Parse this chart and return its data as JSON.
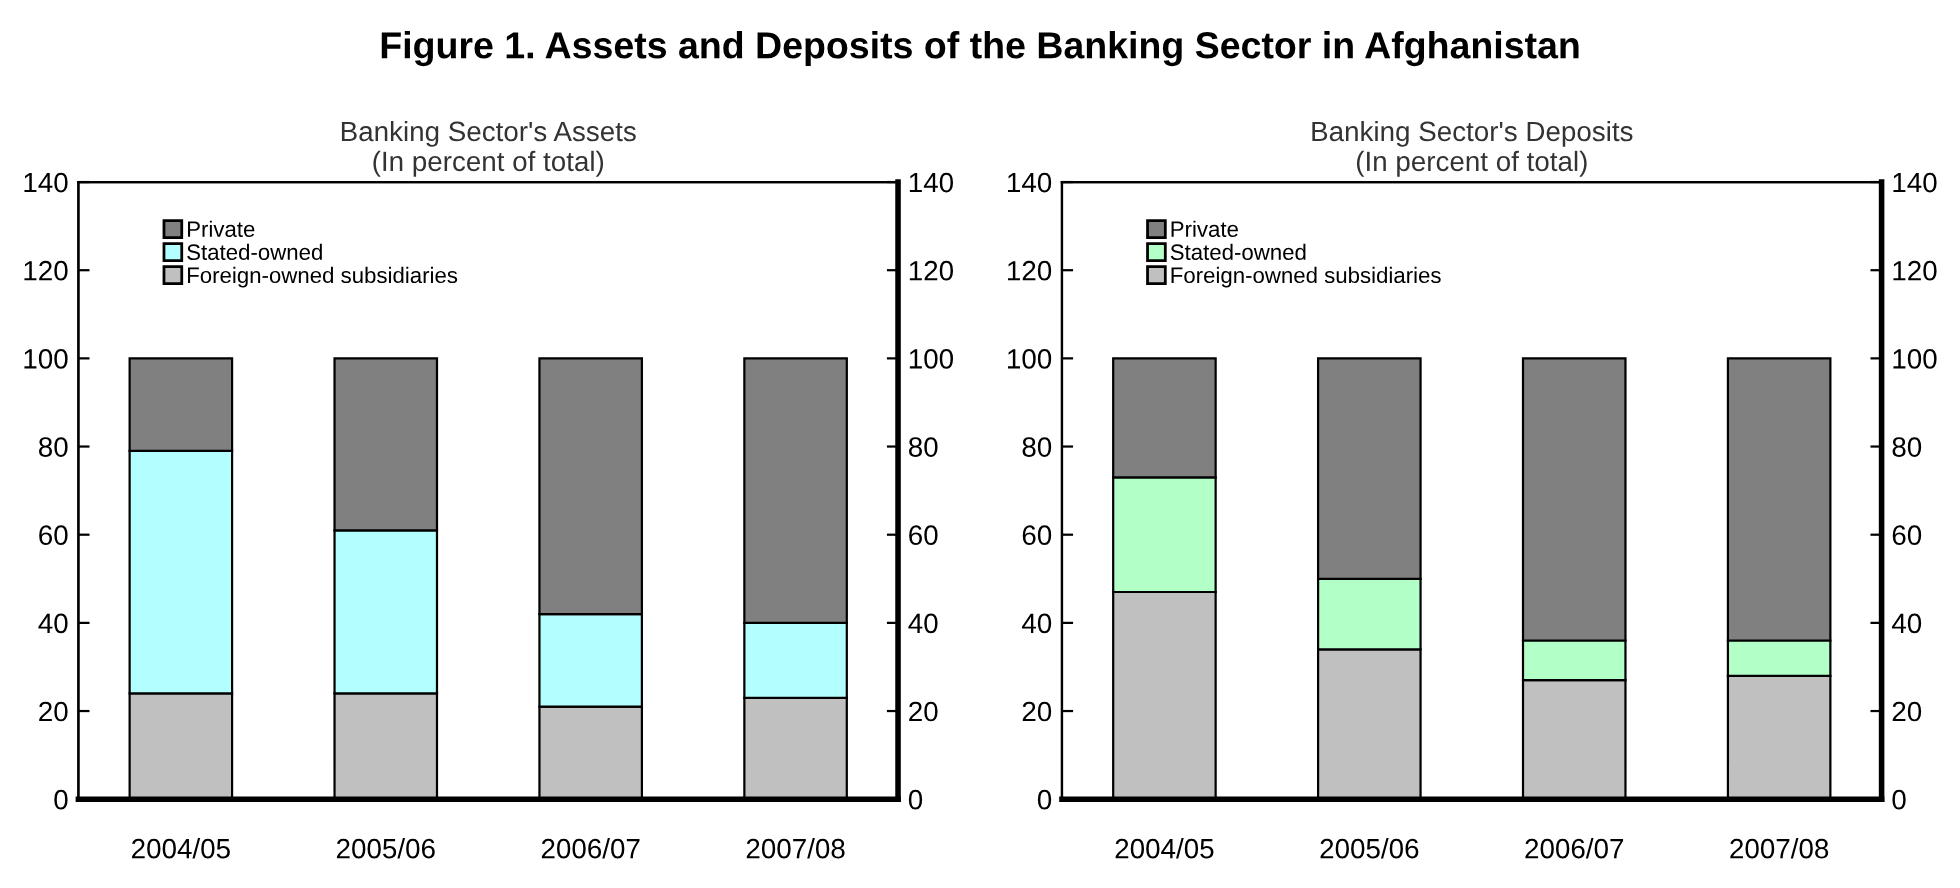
{
  "chart_data": [
    {
      "type": "bar",
      "stacked": true,
      "title": "Banking Sector's Assets",
      "subtitle": "(In percent of total)",
      "annotations": [
        "Figure 1. Assets and Deposits of the Banking Sector in Afghanistan"
      ],
      "categories": [
        "2004/05",
        "2005/06",
        "2006/07",
        "2007/08"
      ],
      "series": [
        {
          "name": "Foreign-owned subsidiaries",
          "color": "#c0c0c0",
          "values": [
            24,
            24,
            21,
            23
          ]
        },
        {
          "name": "Stated-owned",
          "color": "#b3ffff",
          "values": [
            55,
            37,
            21,
            17
          ]
        },
        {
          "name": "Private",
          "color": "#808080",
          "values": [
            21,
            39,
            58,
            60
          ]
        }
      ],
      "ylim": [
        0,
        140
      ],
      "yticks": [
        0,
        20,
        40,
        60,
        80,
        100,
        120,
        140
      ],
      "y2lim": [
        0,
        140
      ],
      "y2ticks": [
        0,
        20,
        40,
        60,
        80,
        100,
        120,
        140
      ],
      "grid": false,
      "legend": "top left"
    },
    {
      "type": "bar",
      "stacked": true,
      "title": "Banking Sector's Deposits",
      "subtitle": "(In percent of total)",
      "categories": [
        "2004/05",
        "2005/06",
        "2006/07",
        "2007/08"
      ],
      "series": [
        {
          "name": "Foreign-owned subsidiaries",
          "color": "#c0c0c0",
          "values": [
            47,
            34,
            27,
            28
          ]
        },
        {
          "name": "Stated-owned",
          "color": "#b3ffc8",
          "values": [
            26,
            16,
            9,
            8
          ]
        },
        {
          "name": "Private",
          "color": "#808080",
          "values": [
            27,
            50,
            64,
            64
          ]
        }
      ],
      "ylim": [
        0,
        140
      ],
      "yticks": [
        0,
        20,
        40,
        60,
        80,
        100,
        120,
        140
      ],
      "y2lim": [
        0,
        140
      ],
      "y2ticks": [
        0,
        20,
        40,
        60,
        80,
        100,
        120,
        140
      ],
      "grid": false,
      "legend": "top left"
    }
  ]
}
